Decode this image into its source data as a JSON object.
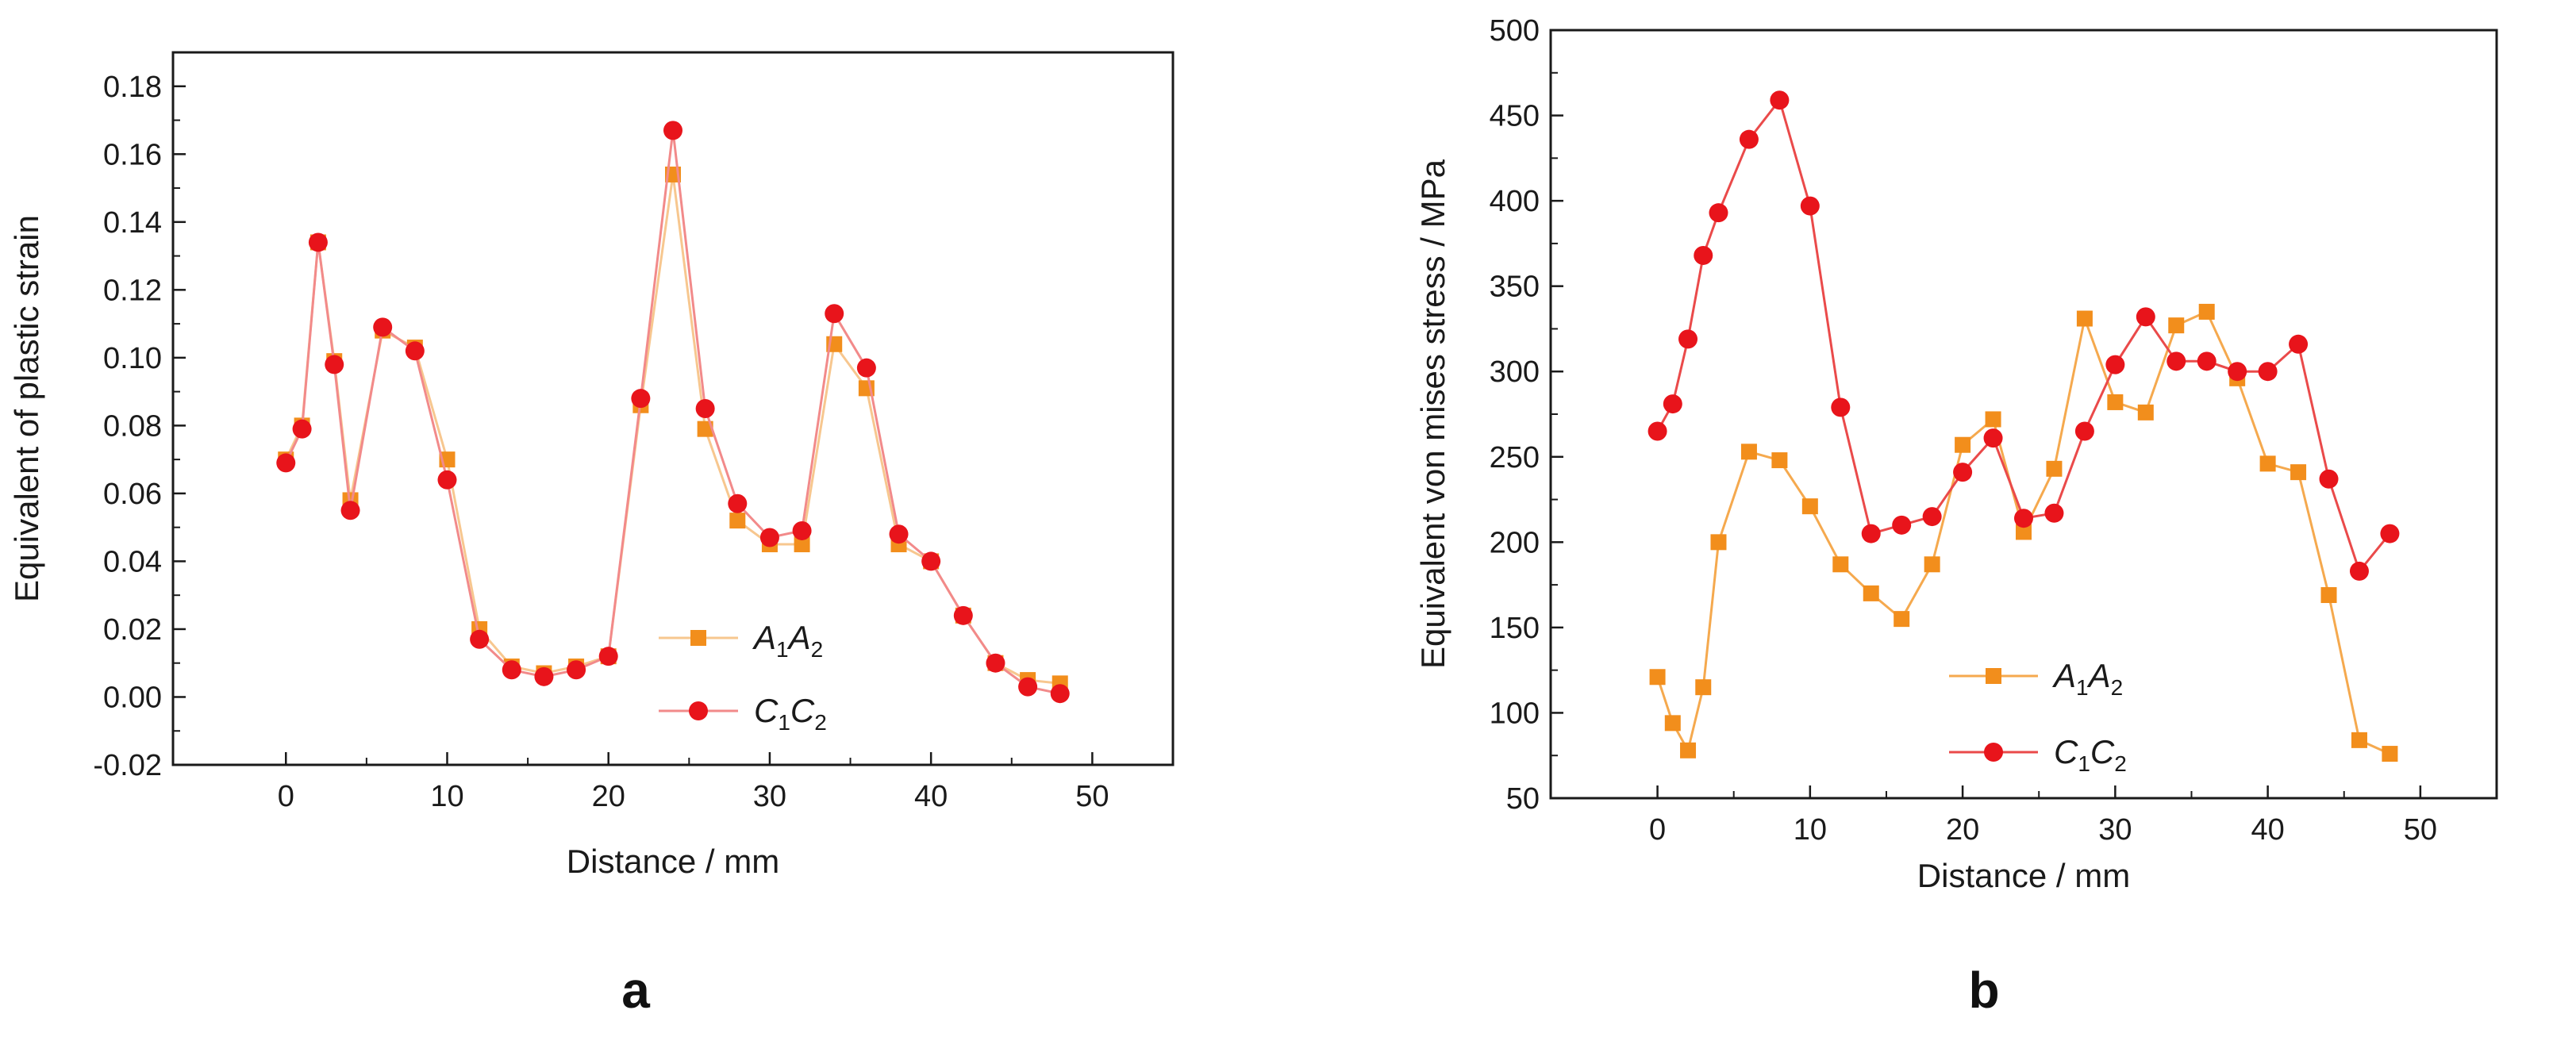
{
  "chart_data": [
    {
      "panel": "a",
      "type": "line",
      "title": "",
      "xlabel": "Distance / mm",
      "ylabel": "Equivalent of plastic strain",
      "xlim": [
        -7,
        55
      ],
      "ylim": [
        -0.02,
        0.19
      ],
      "xticks": [
        0,
        10,
        20,
        30,
        40,
        50
      ],
      "xtick_labels": [
        "0",
        "10",
        "20",
        "30",
        "40",
        "50"
      ],
      "yticks": [
        -0.02,
        0.0,
        0.02,
        0.04,
        0.06,
        0.08,
        0.1,
        0.12,
        0.14,
        0.16,
        0.18
      ],
      "ytick_labels": [
        "-0.02",
        "0.00",
        "0.02",
        "0.04",
        "0.06",
        "0.08",
        "0.10",
        "0.12",
        "0.14",
        "0.16",
        "0.18"
      ],
      "legend_position": "bottom-right",
      "series": [
        {
          "name": "A1A2",
          "name_main_1": "A",
          "name_sub_1": "1",
          "name_main_2": "A",
          "name_sub_2": "2",
          "marker": "square",
          "color": "#f28e1c",
          "line_color": "#f7c78f",
          "x": [
            0,
            1,
            2,
            3,
            4,
            6,
            8,
            10,
            12,
            14,
            16,
            18,
            20,
            22,
            24,
            26,
            28,
            30,
            32,
            34,
            36,
            38,
            40,
            42,
            44,
            46,
            48
          ],
          "y": [
            0.07,
            0.08,
            0.134,
            0.099,
            0.058,
            0.108,
            0.103,
            0.07,
            0.02,
            0.009,
            0.007,
            0.009,
            0.012,
            0.086,
            0.154,
            0.079,
            0.052,
            0.045,
            0.045,
            0.104,
            0.091,
            0.045,
            0.04,
            0.024,
            0.01,
            0.005,
            0.004
          ]
        },
        {
          "name": "C1C2",
          "name_main_1": "C",
          "name_sub_1": "1",
          "name_main_2": "C",
          "name_sub_2": "2",
          "marker": "circle",
          "color": "#e8141b",
          "line_color": "#f28a8a",
          "x": [
            0,
            1,
            2,
            3,
            4,
            6,
            8,
            10,
            12,
            14,
            16,
            18,
            20,
            22,
            24,
            26,
            28,
            30,
            32,
            34,
            36,
            38,
            40,
            42,
            44,
            46,
            48
          ],
          "y": [
            0.069,
            0.079,
            0.134,
            0.098,
            0.055,
            0.109,
            0.102,
            0.064,
            0.017,
            0.008,
            0.006,
            0.008,
            0.012,
            0.088,
            0.167,
            0.085,
            0.057,
            0.047,
            0.049,
            0.113,
            0.097,
            0.048,
            0.04,
            0.024,
            0.01,
            0.003,
            0.001
          ]
        }
      ]
    },
    {
      "panel": "b",
      "type": "line",
      "title": "",
      "xlabel": "Distance / mm",
      "ylabel": "Equivalent von mises stress / MPa",
      "xlim": [
        -7,
        55
      ],
      "ylim": [
        50,
        500
      ],
      "xticks": [
        0,
        10,
        20,
        30,
        40,
        50
      ],
      "xtick_labels": [
        "0",
        "10",
        "20",
        "30",
        "40",
        "50"
      ],
      "yticks": [
        50,
        100,
        150,
        200,
        250,
        300,
        350,
        400,
        450,
        500
      ],
      "ytick_labels": [
        "50",
        "100",
        "150",
        "200",
        "250",
        "300",
        "350",
        "400",
        "450",
        "500"
      ],
      "legend_position": "bottom-center",
      "series": [
        {
          "name": "A1A2",
          "name_main_1": "A",
          "name_sub_1": "1",
          "name_main_2": "A",
          "name_sub_2": "2",
          "marker": "square",
          "color": "#f28e1c",
          "line_color": "#f5a94e",
          "x": [
            0,
            1,
            2,
            3,
            4,
            6,
            8,
            10,
            12,
            14,
            16,
            18,
            20,
            22,
            24,
            26,
            28,
            30,
            32,
            34,
            36,
            38,
            40,
            42,
            44,
            46,
            48
          ],
          "y": [
            121,
            94,
            78,
            115,
            200,
            253,
            248,
            221,
            187,
            170,
            155,
            187,
            257,
            272,
            206,
            243,
            331,
            282,
            276,
            327,
            335,
            296,
            246,
            241,
            169,
            84,
            76
          ]
        },
        {
          "name": "C1C2",
          "name_main_1": "C",
          "name_sub_1": "1",
          "name_main_2": "C",
          "name_sub_2": "2",
          "marker": "circle",
          "color": "#e8141b",
          "line_color": "#ea4a4a",
          "x": [
            0,
            1,
            2,
            3,
            4,
            6,
            8,
            10,
            12,
            14,
            16,
            18,
            20,
            22,
            24,
            26,
            28,
            30,
            32,
            34,
            36,
            38,
            40,
            42,
            44,
            46,
            48
          ],
          "y": [
            265,
            281,
            319,
            368,
            393,
            436,
            459,
            397,
            279,
            205,
            210,
            215,
            241,
            261,
            214,
            217,
            265,
            304,
            332,
            306,
            306,
            300,
            300,
            316,
            237,
            183,
            205
          ]
        }
      ]
    }
  ]
}
